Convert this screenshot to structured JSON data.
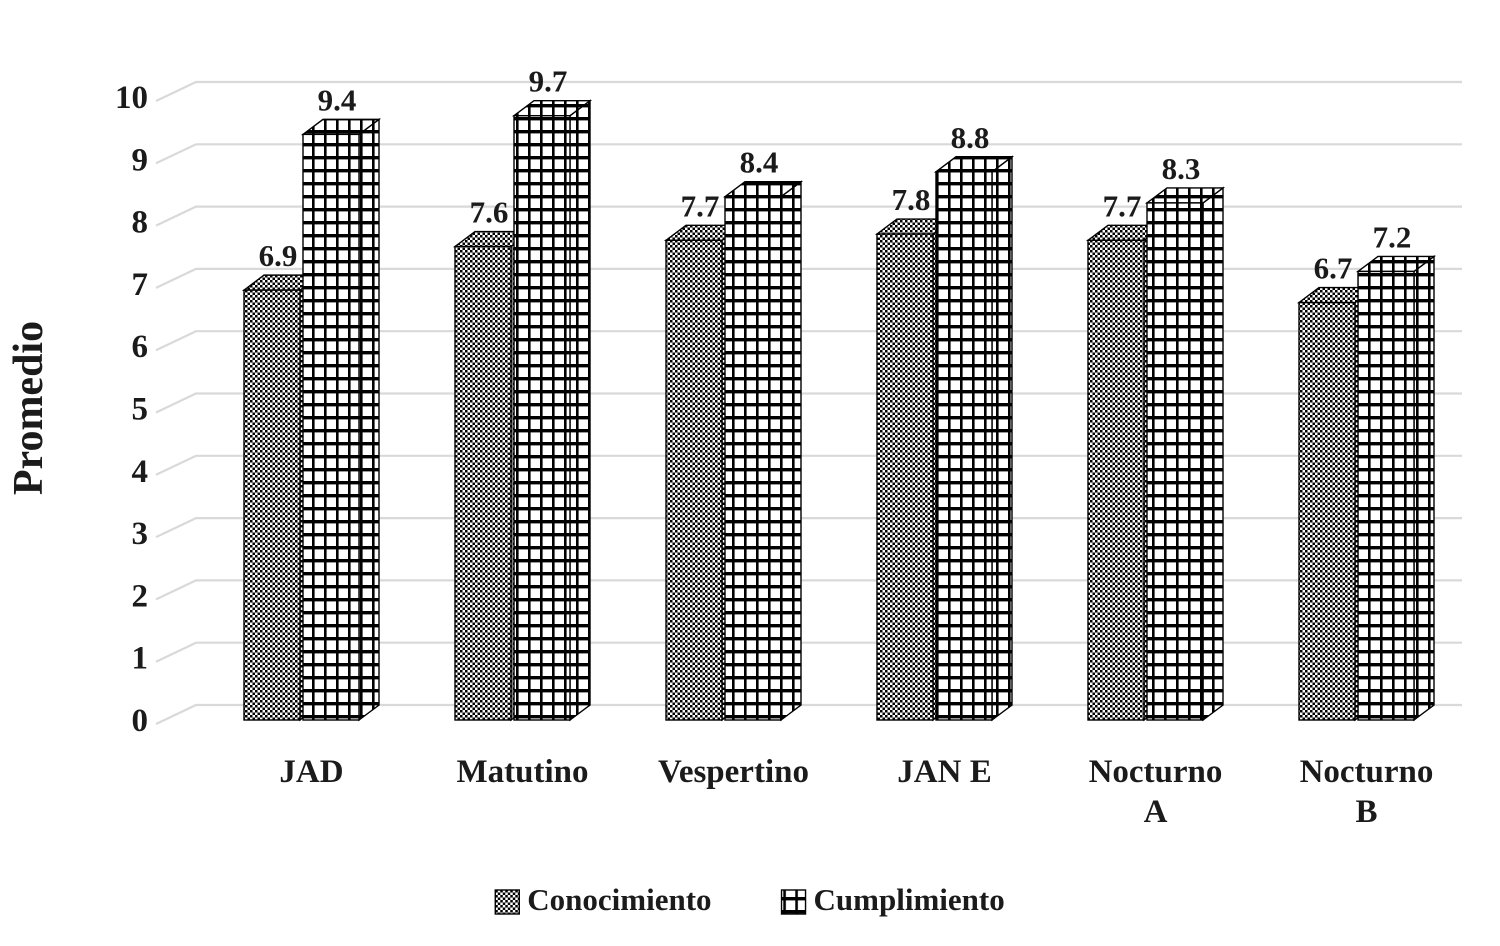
{
  "chart_data": {
    "type": "bar",
    "style": "3d",
    "title": "",
    "xlabel": "",
    "ylabel": "Promedio",
    "ylim": [
      0,
      10
    ],
    "yticks": [
      0,
      1,
      2,
      3,
      4,
      5,
      6,
      7,
      8,
      9,
      10
    ],
    "grid": true,
    "data_labels": true,
    "legend_position": "bottom",
    "categories": [
      "JAD",
      "Matutino",
      "Vespertino",
      "JAN E",
      "Nocturno\nA",
      "Nocturno\nB"
    ],
    "series": [
      {
        "name": "Conocimiento",
        "pattern": "checker",
        "values": [
          6.9,
          7.6,
          7.7,
          7.8,
          7.7,
          6.7
        ]
      },
      {
        "name": "Cumplimiento",
        "pattern": "grid",
        "values": [
          9.4,
          9.7,
          8.4,
          8.8,
          8.3,
          7.2
        ]
      }
    ],
    "colors": {
      "bar_outline": "#000000",
      "pattern_ink": "#000000",
      "pattern_paper": "#ffffff",
      "gridline": "#d9d9d9",
      "text": "#1b1b1b",
      "background": "#ffffff"
    }
  }
}
